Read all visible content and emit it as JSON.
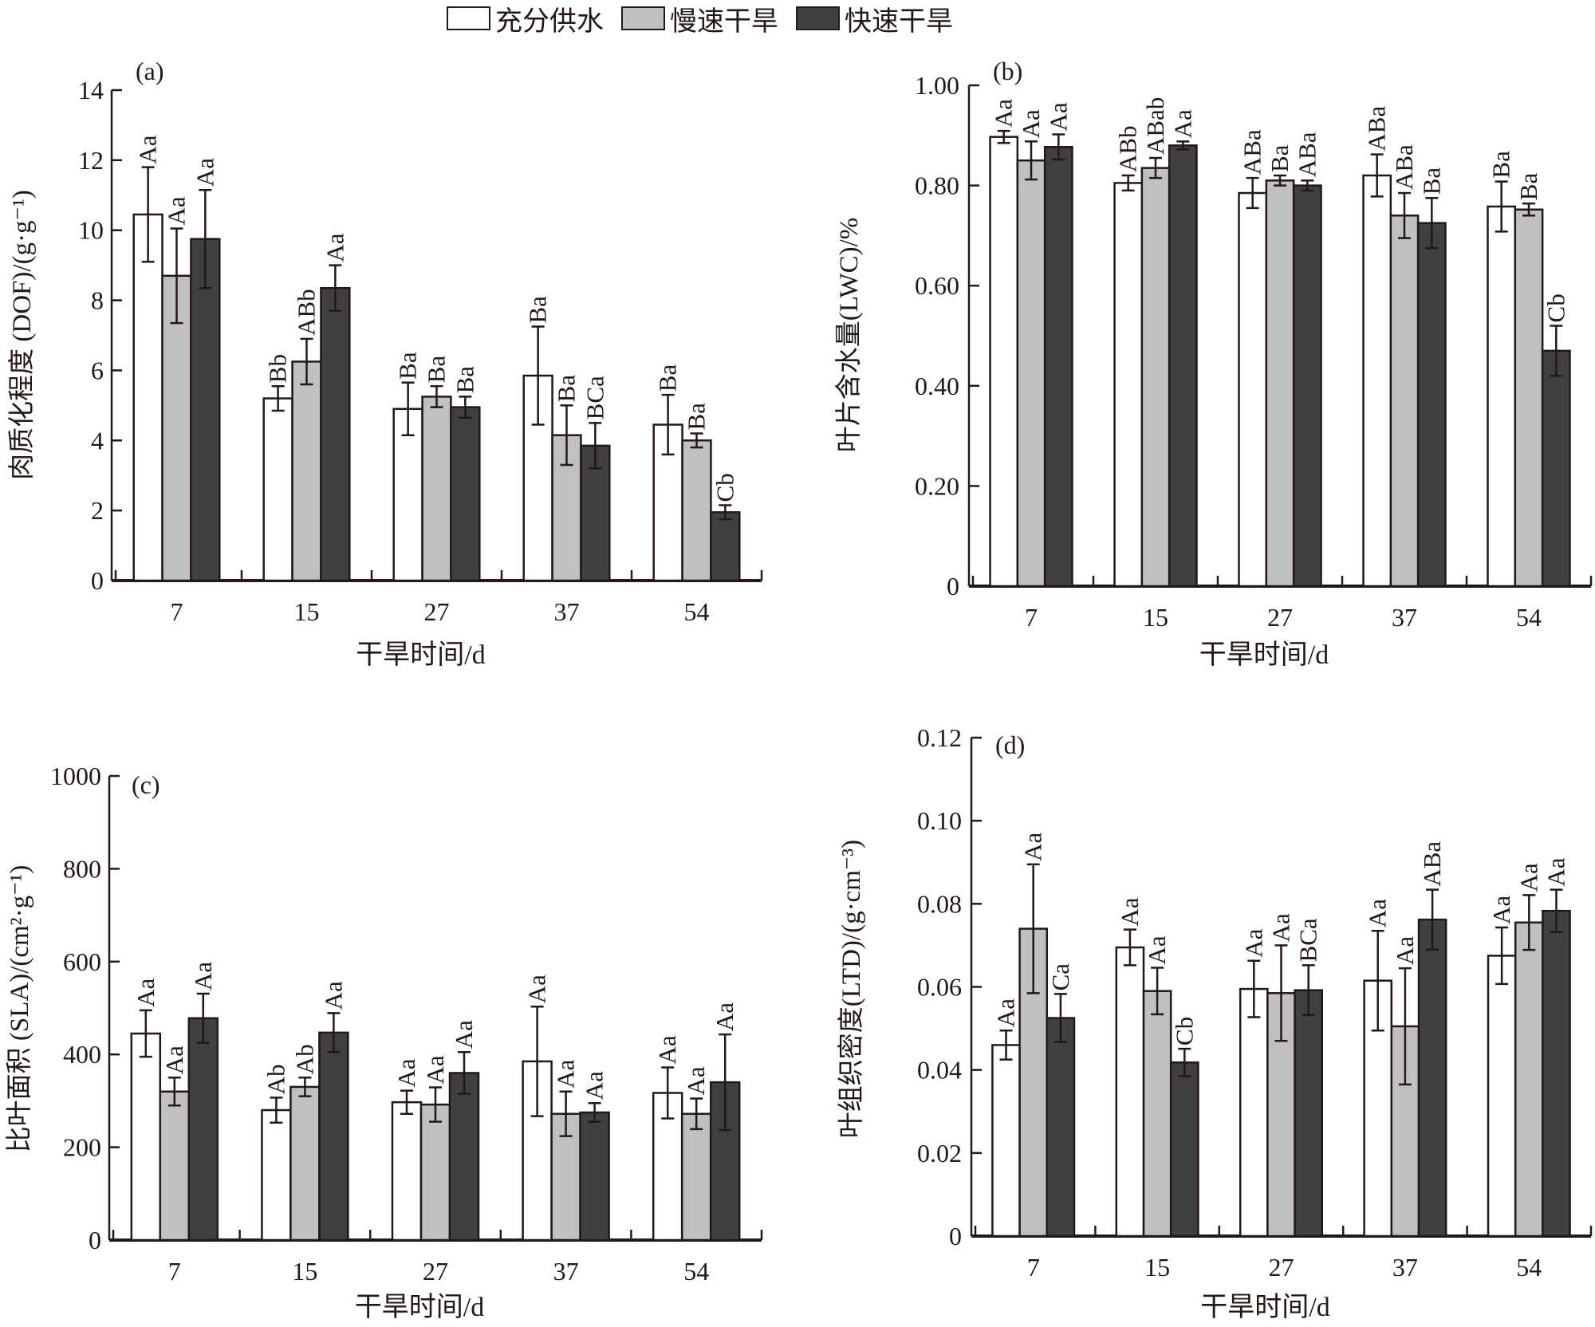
{
  "legend": {
    "items": [
      {
        "label": "充分供水",
        "color": "#ffffff"
      },
      {
        "label": "慢速干旱",
        "color": "#c0c0c0"
      },
      {
        "label": "快速干旱",
        "color": "#404040"
      }
    ]
  },
  "chart_data": [
    {
      "type": "bar",
      "panel": "(a)",
      "title": "",
      "xlabel": "干旱时间/d",
      "ylabel": "肉质化程度 (DOF)/(g·g⁻¹)",
      "ylim": [
        0,
        14
      ],
      "yticks": [
        0,
        2,
        4,
        6,
        8,
        10,
        12,
        14
      ],
      "ytick_labels": [
        "0",
        "2",
        "4",
        "6",
        "8",
        "10",
        "12",
        "14"
      ],
      "categories": [
        "7",
        "15",
        "27",
        "37",
        "54"
      ],
      "series": [
        {
          "name": "充分供水",
          "values": [
            10.45,
            5.2,
            4.9,
            5.85,
            4.45
          ],
          "errors": [
            1.35,
            0.35,
            0.75,
            1.4,
            0.85
          ],
          "labels": [
            "Aa",
            "Bb",
            "Ba",
            "Ba",
            "Ba"
          ]
        },
        {
          "name": "慢速干旱",
          "values": [
            8.7,
            6.25,
            5.25,
            4.15,
            4.0
          ],
          "errors": [
            1.35,
            0.65,
            0.3,
            0.85,
            0.2
          ],
          "labels": [
            "Aa",
            "ABb",
            "Ba",
            "Ba",
            "Ba"
          ]
        },
        {
          "name": "快速干旱",
          "values": [
            9.75,
            8.35,
            4.95,
            3.85,
            1.95
          ],
          "errors": [
            1.4,
            0.65,
            0.3,
            0.65,
            0.2
          ],
          "labels": [
            "Aa",
            "Aa",
            "Ba",
            "BCa",
            "Cb"
          ]
        }
      ]
    },
    {
      "type": "bar",
      "panel": "(b)",
      "title": "",
      "xlabel": "干旱时间/d",
      "ylabel": "叶片含水量(LWC)/%",
      "ylim": [
        0,
        1.0
      ],
      "yticks": [
        0,
        0.2,
        0.4,
        0.6,
        0.8,
        1.0
      ],
      "ytick_labels": [
        "0",
        "0.20",
        "0.40",
        "0.60",
        "0.80",
        "1.00"
      ],
      "categories": [
        "7",
        "15",
        "27",
        "37",
        "54"
      ],
      "series": [
        {
          "name": "充分供水",
          "values": [
            0.897,
            0.805,
            0.785,
            0.82,
            0.758
          ],
          "errors": [
            0.012,
            0.015,
            0.03,
            0.042,
            0.05
          ],
          "labels": [
            "Aa",
            "ABb",
            "ABa",
            "ABa",
            "Ba"
          ]
        },
        {
          "name": "慢速干旱",
          "values": [
            0.85,
            0.835,
            0.81,
            0.74,
            0.752
          ],
          "errors": [
            0.038,
            0.02,
            0.01,
            0.045,
            0.012
          ],
          "labels": [
            "Aa",
            "ABab",
            "Ba",
            "ABa",
            "Ba"
          ]
        },
        {
          "name": "快速干旱",
          "values": [
            0.877,
            0.88,
            0.8,
            0.725,
            0.47
          ],
          "errors": [
            0.025,
            0.008,
            0.01,
            0.05,
            0.05
          ],
          "labels": [
            "Aa",
            "Aa",
            "ABa",
            "Ba",
            "Cb"
          ]
        }
      ]
    },
    {
      "type": "bar",
      "panel": "(c)",
      "title": "",
      "xlabel": "干旱时间/d",
      "ylabel": "比叶面积 (SLA)/(cm²·g⁻¹)",
      "ylim": [
        0,
        1000
      ],
      "yticks": [
        0,
        200,
        400,
        600,
        800,
        1000
      ],
      "ytick_labels": [
        "0",
        "200",
        "400",
        "600",
        "800",
        "1000"
      ],
      "categories": [
        "7",
        "15",
        "27",
        "37",
        "54"
      ],
      "series": [
        {
          "name": "充分供水",
          "values": [
            445,
            280,
            297,
            385,
            317
          ],
          "errors": [
            50,
            27,
            25,
            118,
            55
          ],
          "labels": [
            "Aa",
            "Ab",
            "Aa",
            "Aa",
            "Aa"
          ]
        },
        {
          "name": "慢速干旱",
          "values": [
            320,
            330,
            292,
            272,
            272
          ],
          "errors": [
            30,
            20,
            37,
            48,
            33
          ],
          "labels": [
            "Aa",
            "Ab",
            "Aa",
            "Aa",
            "Aa"
          ]
        },
        {
          "name": "快速干旱",
          "values": [
            478,
            447,
            360,
            275,
            340
          ],
          "errors": [
            53,
            42,
            45,
            20,
            103
          ],
          "labels": [
            "Aa",
            "Aa",
            "Aa",
            "Aa",
            "Aa"
          ]
        }
      ]
    },
    {
      "type": "bar",
      "panel": "(d)",
      "title": "",
      "xlabel": "干旱时间/d",
      "ylabel": "叶组织密度(LTD)/(g·cm⁻³)",
      "ylim": [
        0,
        0.12
      ],
      "yticks": [
        0,
        0.02,
        0.04,
        0.06,
        0.08,
        0.1,
        0.12
      ],
      "ytick_labels": [
        "0",
        "0.02",
        "0.04",
        "0.06",
        "0.08",
        "0.10",
        "0.12"
      ],
      "categories": [
        "7",
        "15",
        "27",
        "37",
        "54"
      ],
      "series": [
        {
          "name": "充分供水",
          "values": [
            0.046,
            0.0695,
            0.0595,
            0.0615,
            0.0675
          ],
          "errors": [
            0.0035,
            0.0043,
            0.0068,
            0.012,
            0.0068
          ],
          "labels": [
            "Aa",
            "Aa",
            "Aa",
            "Aa",
            "Aa"
          ]
        },
        {
          "name": "慢速干旱",
          "values": [
            0.074,
            0.059,
            0.0585,
            0.0505,
            0.0755
          ],
          "errors": [
            0.0155,
            0.0056,
            0.0115,
            0.014,
            0.0066
          ],
          "labels": [
            "Aa",
            "Aa",
            "Aa",
            "Aa",
            "Aa"
          ]
        },
        {
          "name": "快速干旱",
          "values": [
            0.0525,
            0.0418,
            0.0592,
            0.0762,
            0.0783
          ],
          "errors": [
            0.0058,
            0.0033,
            0.006,
            0.0072,
            0.0051
          ],
          "labels": [
            "Ca",
            "Cb",
            "BCa",
            "ABa",
            "Aa"
          ]
        }
      ]
    }
  ]
}
